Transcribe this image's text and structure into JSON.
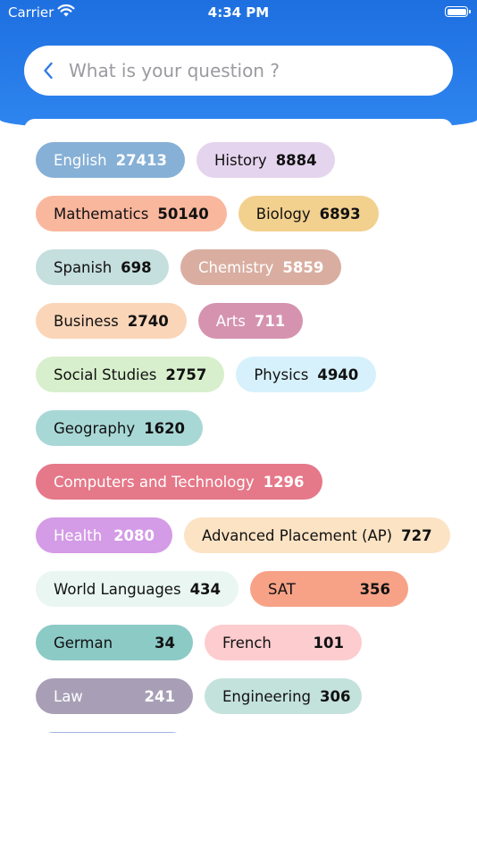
{
  "status_bar": {
    "carrier": "Carrier",
    "time": "4:34 PM"
  },
  "search": {
    "placeholder": "What is your question ?"
  },
  "subjects": [
    {
      "name": "English",
      "count": "27413",
      "bg": "#86b0d6",
      "fg": "#ffffff"
    },
    {
      "name": "History",
      "count": "8884",
      "bg": "#e5d4ee",
      "fg": "#111111"
    },
    {
      "name": "Mathematics",
      "count": "50140",
      "bg": "#f9b79d",
      "fg": "#111111"
    },
    {
      "name": "Biology",
      "count": "6893",
      "bg": "#f2d08e",
      "fg": "#111111"
    },
    {
      "name": "Spanish",
      "count": "698",
      "bg": "#c5dede",
      "fg": "#111111"
    },
    {
      "name": "Chemistry",
      "count": "5859",
      "bg": "#d9aea1",
      "fg": "#ffffff"
    },
    {
      "name": "Business",
      "count": "2740",
      "bg": "#fad5b8",
      "fg": "#111111"
    },
    {
      "name": "Arts",
      "count": "711",
      "bg": "#d593b0",
      "fg": "#ffffff"
    },
    {
      "name": "Social Studies",
      "count": "2757",
      "bg": "#d7efcc",
      "fg": "#111111"
    },
    {
      "name": "Physics",
      "count": "4940",
      "bg": "#d6f1fb",
      "fg": "#111111"
    },
    {
      "name": "Geography",
      "count": "1620",
      "bg": "#a8d8d6",
      "fg": "#111111"
    },
    {
      "name": "Computers and Technology",
      "count": "1296",
      "bg": "#e57889",
      "fg": "#ffffff"
    },
    {
      "name": "Health",
      "count": "2080",
      "bg": "#d49be6",
      "fg": "#ffffff"
    },
    {
      "name": "Advanced Placement (AP)",
      "count": "727",
      "bg": "#fce3c4",
      "fg": "#111111"
    },
    {
      "name": "World Languages",
      "count": "434",
      "bg": "#e9f6f1",
      "fg": "#111111"
    },
    {
      "name": "SAT",
      "count": "356",
      "bg": "#f7a287",
      "fg": "#111111"
    },
    {
      "name": "German",
      "count": "34",
      "bg": "#8ccac6",
      "fg": "#111111"
    },
    {
      "name": "French",
      "count": "101",
      "bg": "#fccccf",
      "fg": "#111111"
    },
    {
      "name": "Law",
      "count": "241",
      "bg": "#a89fb7",
      "fg": "#ffffff"
    },
    {
      "name": "Engineering",
      "count": "306",
      "bg": "#c4e2dc",
      "fg": "#111111"
    }
  ],
  "colors": {
    "header_top": "#1e6fe0",
    "header_bottom": "#2f86f0",
    "back_icon": "#2f7ae5"
  }
}
